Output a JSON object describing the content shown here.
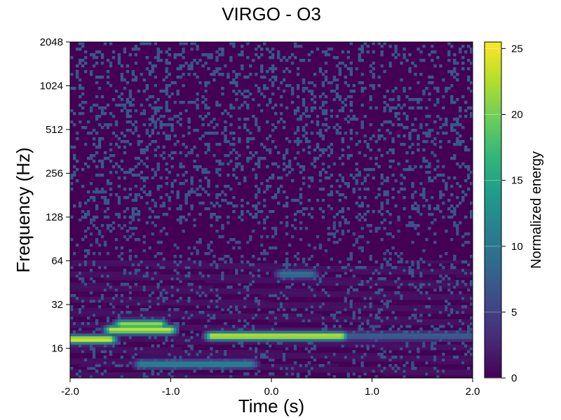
{
  "chart_data": {
    "type": "heatmap",
    "title": "VIRGO - O3",
    "xlabel": "Time (s)",
    "ylabel": "Frequency (Hz)",
    "xlim": [
      -2.0,
      2.0
    ],
    "ylim": [
      10,
      2048
    ],
    "yscale": "log2",
    "xticks": [
      -2.0,
      -1.0,
      0.0,
      1.0,
      2.0
    ],
    "xtick_labels": [
      "-2.0",
      "-1.0",
      "0.0",
      "1.0",
      "2.0"
    ],
    "yticks": [
      16,
      32,
      64,
      128,
      256,
      512,
      1024,
      2048
    ],
    "ytick_labels": [
      "16",
      "32",
      "64",
      "128",
      "256",
      "512",
      "1024",
      "2048"
    ],
    "colorbar": {
      "label": "Normalized energy",
      "range": [
        0,
        25.5
      ],
      "ticks": [
        0,
        5,
        10,
        15,
        20,
        25
      ],
      "tick_labels": [
        "0",
        "5",
        "10",
        "15",
        "20",
        "25"
      ],
      "colormap": [
        "#440154",
        "#482878",
        "#3e4989",
        "#31688e",
        "#26828e",
        "#1f9e89",
        "#35b779",
        "#6ece58",
        "#b5de2b",
        "#fde725"
      ]
    },
    "features": [
      {
        "t_start": -2.0,
        "t_end": -1.6,
        "freq": 18.5,
        "energy": 25
      },
      {
        "t_start": -1.6,
        "t_end": -1.0,
        "freq": 21.5,
        "energy": 24
      },
      {
        "t_start": -1.5,
        "t_end": -1.1,
        "freq": 23.5,
        "energy": 22
      },
      {
        "t_start": -0.6,
        "t_end": 0.7,
        "freq": 19.5,
        "energy": 24
      },
      {
        "t_start": 0.7,
        "t_end": 2.0,
        "freq": 19.5,
        "energy": 8
      },
      {
        "t_start": -1.3,
        "t_end": -0.2,
        "freq": 12.5,
        "energy": 12
      },
      {
        "t_start": 0.1,
        "t_end": 0.4,
        "freq": 52,
        "energy": 10
      }
    ]
  }
}
